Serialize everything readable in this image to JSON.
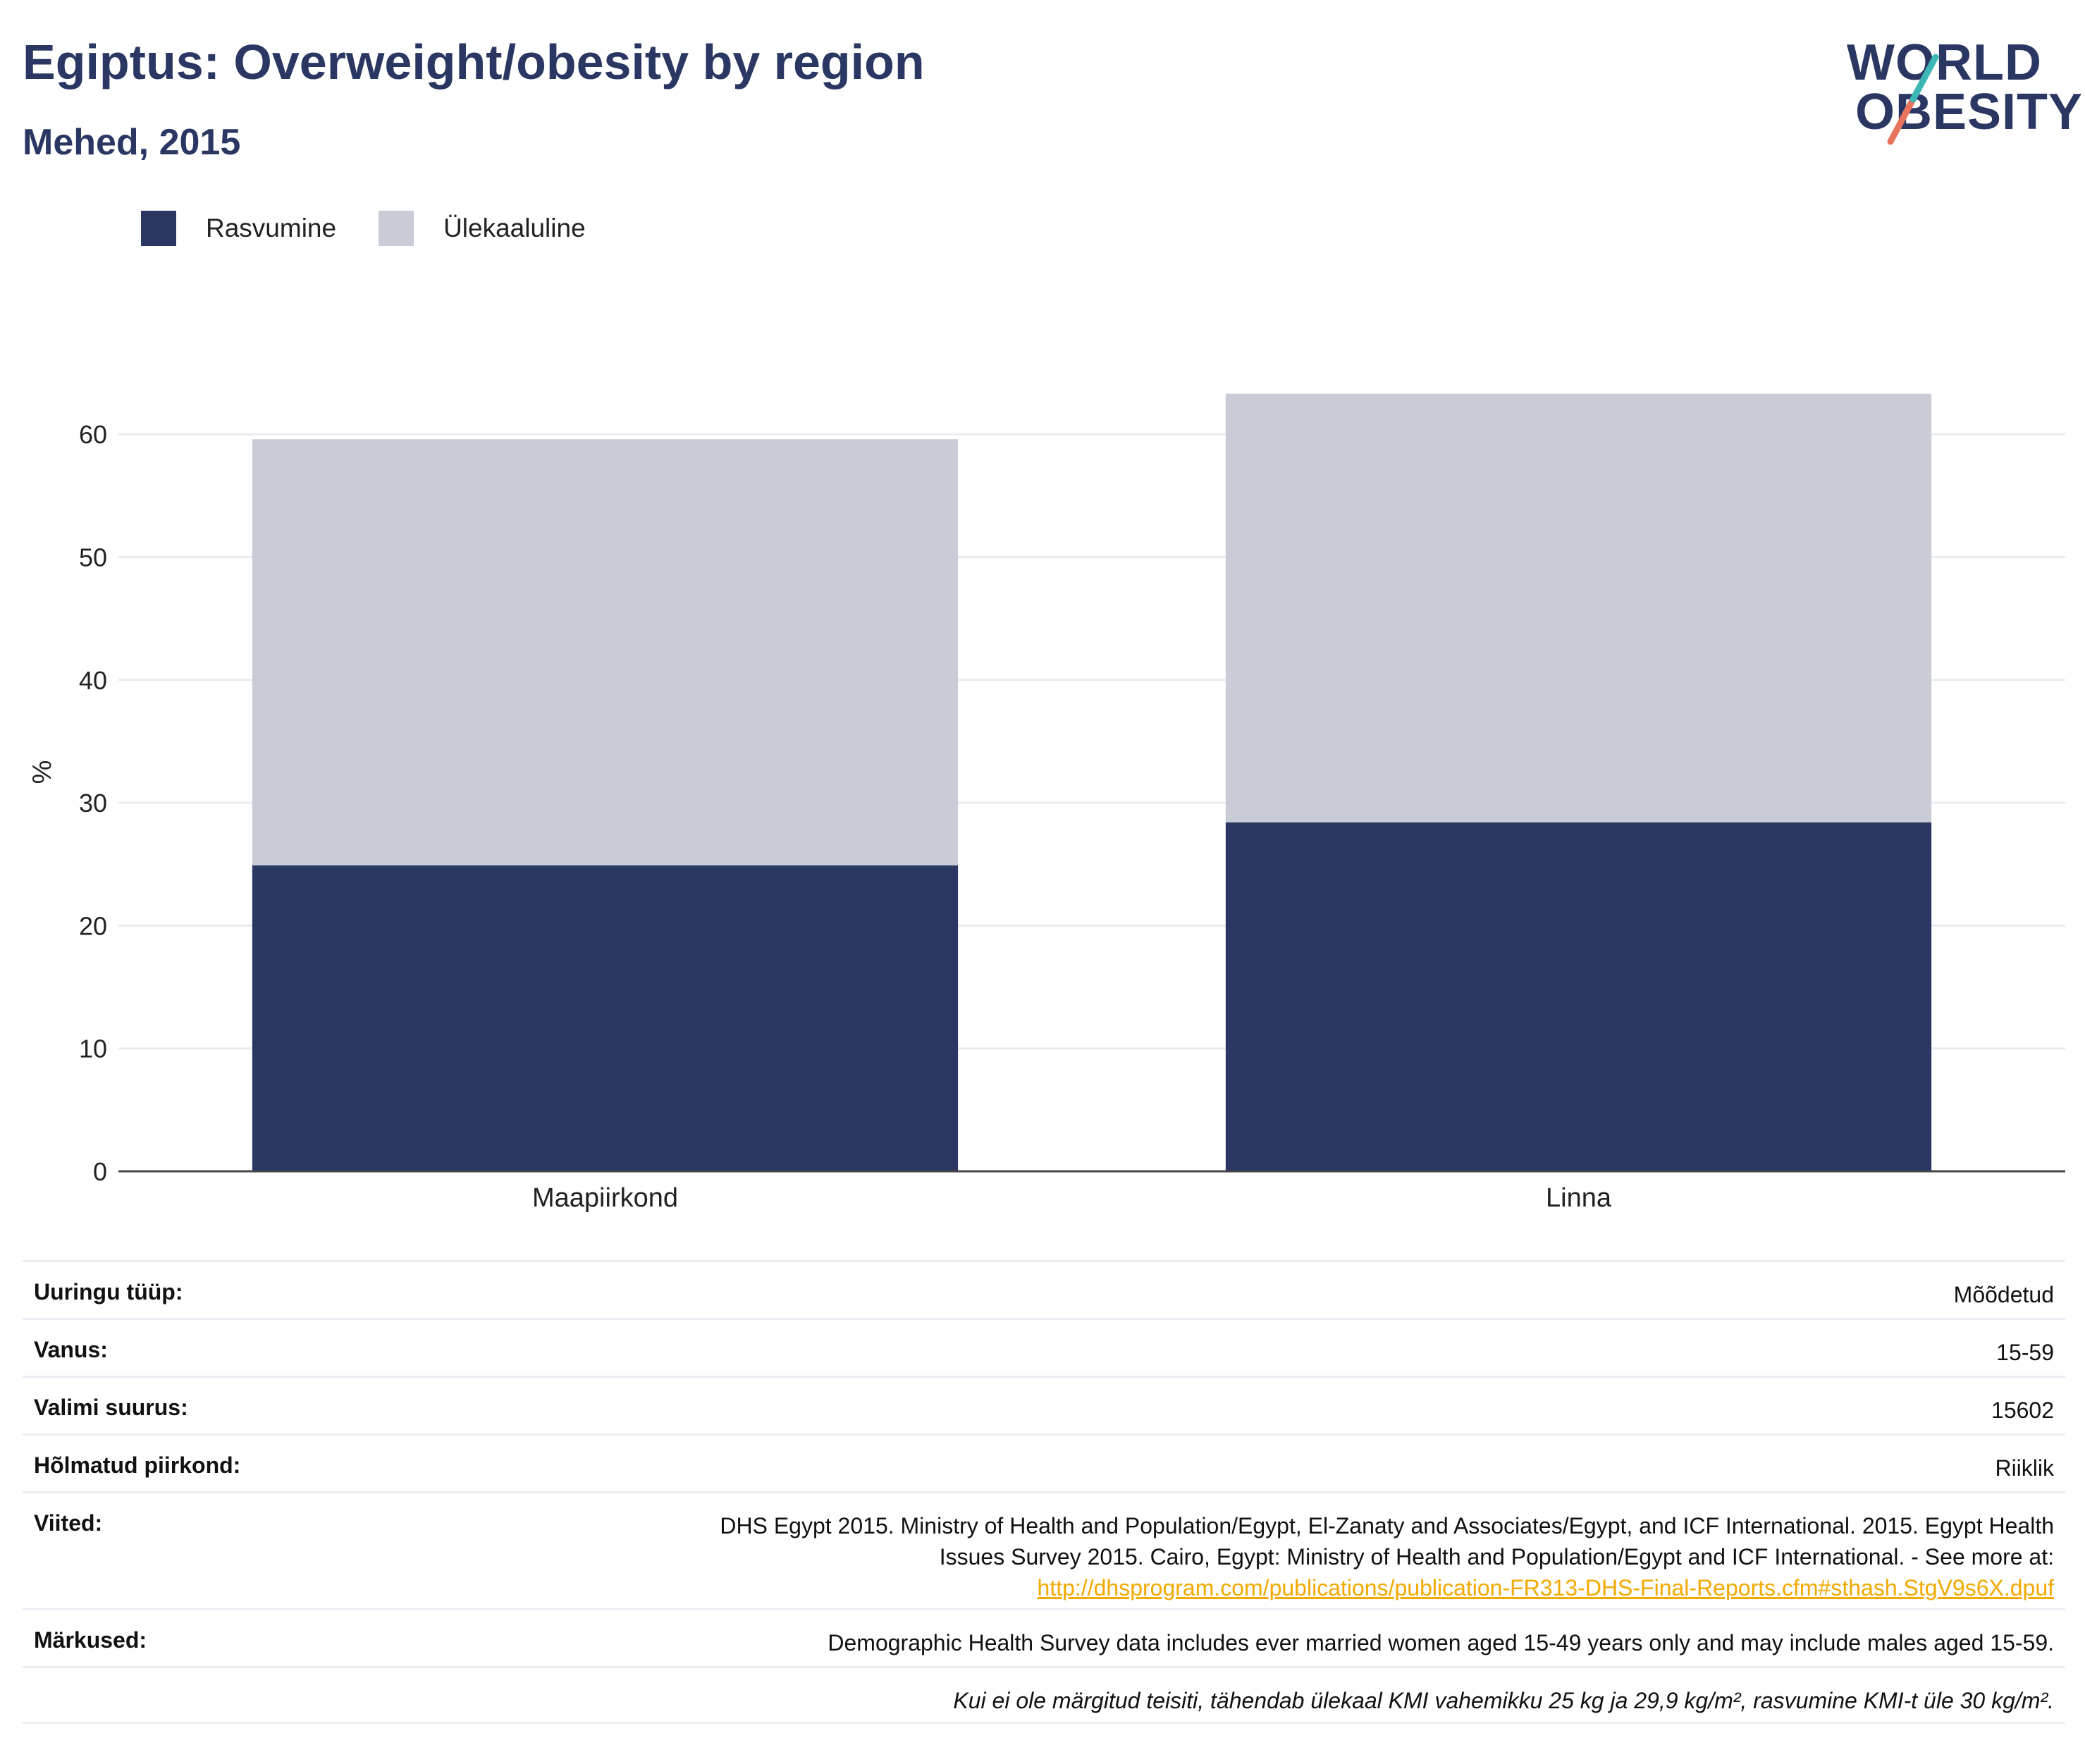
{
  "header": {
    "title": "Egiptus: Overweight/obesity by region",
    "subtitle": "Mehed, 2015"
  },
  "logo": {
    "line1": "WORLD",
    "line2": "OBESITY"
  },
  "legend": [
    {
      "label": "Rasvumine",
      "color": "#2a3762"
    },
    {
      "label": "Ülekaaluline",
      "color": "#c9ccd7"
    }
  ],
  "chart_data": {
    "type": "bar",
    "stacked": true,
    "categories": [
      "Maapiirkond",
      "Linna"
    ],
    "series": [
      {
        "name": "Rasvumine",
        "values": [
          24.9,
          28.4
        ],
        "color": "#2a3762"
      },
      {
        "name": "Ülekaaluline",
        "values": [
          34.7,
          34.9
        ],
        "color": "#c9ccd7"
      }
    ],
    "ylabel": "%",
    "ylim": [
      0,
      65
    ],
    "yticks": [
      0,
      10,
      20,
      30,
      40,
      50,
      60
    ],
    "grid": true
  },
  "meta": [
    {
      "label": "Uuringu tüüp:",
      "value": "Mõõdetud"
    },
    {
      "label": "Vanus:",
      "value": "15-59"
    },
    {
      "label": "Valimi suurus:",
      "value": "15602"
    },
    {
      "label": "Hõlmatud piirkond:",
      "value": "Riiklik"
    },
    {
      "label": "Viited:",
      "value_line1": "DHS Egypt 2015. Ministry of Health and Population/Egypt, El-Zanaty and Associates/Egypt, and ICF International. 2015. Egypt Health",
      "value_line2": "Issues Survey 2015. Cairo, Egypt: Ministry of Health and Population/Egypt and ICF International. - See more at:",
      "link": "http://dhsprogram.com/publications/publication-FR313-DHS-Final-Reports.cfm#sthash.StgV9s6X.dpuf"
    },
    {
      "label": "Märkused:",
      "value": "Demographic Health Survey data includes ever married women aged 15-49 years only and may include males aged 15-59."
    },
    {
      "label": "",
      "value": "Kui ei ole märgitud teisiti, tähendab ülekaal KMI vahemikku 25 kg ja 29,9 kg/m², rasvumine KMI-t üle 30 kg/m²."
    }
  ]
}
